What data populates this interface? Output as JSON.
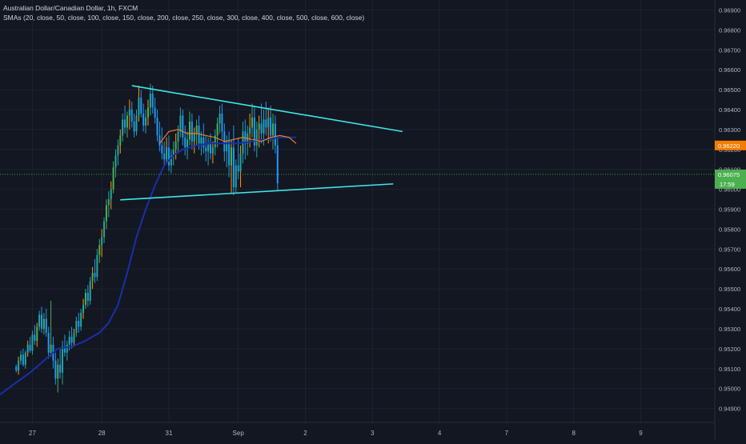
{
  "header": {
    "title": "Australian Dollar/Canadian Dollar, 1h, FXCM",
    "indicator": "SMAs (20, close, 50, close, 100, close, 150, close, 200, close, 250, close, 300, close, 400, close, 500, close, 600, close)"
  },
  "colors": {
    "background": "#131722",
    "grid": "#1e2231",
    "axis_text": "#b2b5be",
    "bull": "#26a69a",
    "bull_alt": "#4caf50",
    "bear": "#2196f3",
    "wick_up": "#ff9800",
    "trendline": "#3ee6e6",
    "sma_fast": "#e8812a",
    "sma_slow": "#1a2fa8",
    "price_orange": "#f57c00",
    "price_green": "#4caf50"
  },
  "chart_data": {
    "type": "candlestick",
    "symbol": "AUDCAD",
    "interval": "1h",
    "y_ticks": [
      0.969,
      0.968,
      0.967,
      0.966,
      0.965,
      0.964,
      0.963,
      0.962,
      0.961,
      0.96,
      0.959,
      0.958,
      0.957,
      0.956,
      0.955,
      0.954,
      0.953,
      0.952,
      0.951,
      0.95,
      0.949
    ],
    "y_tick_labels": [
      "0.96900",
      "0.96800",
      "0.96700",
      "0.96600",
      "0.96500",
      "0.96400",
      "0.96300",
      "0.96200",
      "0.96100",
      "0.96000",
      "0.95900",
      "0.95800",
      "0.95700",
      "0.95600",
      "0.95500",
      "0.95400",
      "0.95300",
      "0.95200",
      "0.95100",
      "0.95000",
      "0.94900"
    ],
    "ylim": [
      0.9483,
      0.9695
    ],
    "x_ticks": [
      "27",
      "28",
      "31",
      "Sep",
      "2",
      "3",
      "4",
      "7",
      "8",
      "9"
    ],
    "x_tick_index": [
      7,
      37,
      66,
      96,
      125,
      154,
      183,
      212,
      241,
      270
    ],
    "x_range": [
      -7,
      302
    ],
    "current_price": {
      "label": "0.96075",
      "value": 0.96075,
      "countdown": "17:59"
    },
    "marked_price": {
      "label": "0.96220",
      "value": 0.9622
    },
    "trendlines": [
      {
        "name": "",
        "from": [
          50,
          0.9652
        ],
        "to": [
          167,
          0.9629
        ]
      },
      {
        "name": "",
        "from": [
          45,
          0.95947
        ],
        "to": [
          163,
          0.96027
        ]
      }
    ],
    "sma_fast": [
      [
        62,
        0.9623
      ],
      [
        66,
        0.9629
      ],
      [
        70,
        0.963
      ],
      [
        74,
        0.9628
      ],
      [
        78,
        0.9628
      ],
      [
        82,
        0.9627
      ],
      [
        86,
        0.9626
      ],
      [
        90,
        0.9624
      ],
      [
        94,
        0.9625
      ],
      [
        98,
        0.9626
      ],
      [
        102,
        0.9625
      ],
      [
        106,
        0.9624
      ],
      [
        110,
        0.9626
      ],
      [
        114,
        0.9627
      ],
      [
        118,
        0.9626
      ],
      [
        121,
        0.9623
      ]
    ],
    "sma_slow": [
      [
        -7,
        0.9497
      ],
      [
        0,
        0.9503
      ],
      [
        6,
        0.9508
      ],
      [
        12,
        0.9514
      ],
      [
        18,
        0.952
      ],
      [
        24,
        0.9521
      ],
      [
        30,
        0.9524
      ],
      [
        36,
        0.9528
      ],
      [
        40,
        0.9533
      ],
      [
        44,
        0.9542
      ],
      [
        48,
        0.9558
      ],
      [
        52,
        0.9576
      ],
      [
        56,
        0.959
      ],
      [
        60,
        0.9602
      ],
      [
        64,
        0.9612
      ],
      [
        68,
        0.9617
      ],
      [
        72,
        0.962
      ],
      [
        78,
        0.9622
      ],
      [
        84,
        0.9623
      ],
      [
        90,
        0.9623
      ],
      [
        96,
        0.9623
      ],
      [
        102,
        0.9624
      ],
      [
        108,
        0.9625
      ],
      [
        114,
        0.9626
      ],
      [
        121,
        0.9626
      ]
    ],
    "candles": [
      [
        0.9511,
        0.9512,
        0.9508,
        0.9509
      ],
      [
        0.9509,
        0.9516,
        0.9507,
        0.9514
      ],
      [
        0.9514,
        0.9519,
        0.9512,
        0.9517
      ],
      [
        0.9517,
        0.952,
        0.9511,
        0.9512
      ],
      [
        0.9512,
        0.9519,
        0.951,
        0.9518
      ],
      [
        0.9518,
        0.9524,
        0.9516,
        0.9522
      ],
      [
        0.9522,
        0.9526,
        0.9518,
        0.9519
      ],
      [
        0.9519,
        0.9529,
        0.9517,
        0.9527
      ],
      [
        0.9527,
        0.9532,
        0.9522,
        0.9524
      ],
      [
        0.9524,
        0.9533,
        0.9521,
        0.9531
      ],
      [
        0.9531,
        0.9539,
        0.9529,
        0.9537
      ],
      [
        0.9537,
        0.9541,
        0.9528,
        0.953
      ],
      [
        0.953,
        0.9538,
        0.9527,
        0.9535
      ],
      [
        0.9535,
        0.954,
        0.9526,
        0.9528
      ],
      [
        0.9528,
        0.9531,
        0.9515,
        0.9518
      ],
      [
        0.9518,
        0.9544,
        0.9516,
        0.9522
      ],
      [
        0.9522,
        0.9526,
        0.951,
        0.9514
      ],
      [
        0.9514,
        0.9518,
        0.9502,
        0.9505
      ],
      [
        0.9505,
        0.9515,
        0.9498,
        0.9512
      ],
      [
        0.9512,
        0.952,
        0.9505,
        0.9508
      ],
      [
        0.9508,
        0.9524,
        0.9502,
        0.9521
      ],
      [
        0.9521,
        0.9527,
        0.9516,
        0.9518
      ],
      [
        0.9518,
        0.9524,
        0.9514,
        0.9522
      ],
      [
        0.9522,
        0.9529,
        0.9519,
        0.9526
      ],
      [
        0.9526,
        0.9531,
        0.952,
        0.9523
      ],
      [
        0.9523,
        0.953,
        0.9521,
        0.9528
      ],
      [
        0.9528,
        0.9536,
        0.9526,
        0.9534
      ],
      [
        0.9534,
        0.9538,
        0.9528,
        0.9531
      ],
      [
        0.9531,
        0.954,
        0.9529,
        0.9538
      ],
      [
        0.9538,
        0.9545,
        0.9535,
        0.9542
      ],
      [
        0.9542,
        0.955,
        0.954,
        0.9548
      ],
      [
        0.9548,
        0.9552,
        0.9541,
        0.9544
      ],
      [
        0.9544,
        0.9556,
        0.9542,
        0.9554
      ],
      [
        0.9554,
        0.9561,
        0.955,
        0.9558
      ],
      [
        0.9558,
        0.9565,
        0.9553,
        0.9556
      ],
      [
        0.9556,
        0.957,
        0.9554,
        0.9567
      ],
      [
        0.9567,
        0.9575,
        0.9563,
        0.9572
      ],
      [
        0.9572,
        0.958,
        0.9566,
        0.9576
      ],
      [
        0.9576,
        0.9586,
        0.9573,
        0.9584
      ],
      [
        0.9584,
        0.9595,
        0.958,
        0.9592
      ],
      [
        0.9592,
        0.9599,
        0.9586,
        0.9595
      ],
      [
        0.9595,
        0.9604,
        0.959,
        0.96
      ],
      [
        0.96,
        0.9614,
        0.9598,
        0.9611
      ],
      [
        0.9611,
        0.962,
        0.9606,
        0.9617
      ],
      [
        0.9617,
        0.9625,
        0.9612,
        0.9622
      ],
      [
        0.9622,
        0.963,
        0.9618,
        0.9627
      ],
      [
        0.9627,
        0.9638,
        0.9624,
        0.9635
      ],
      [
        0.9635,
        0.9642,
        0.9628,
        0.9631
      ],
      [
        0.9631,
        0.9639,
        0.9626,
        0.9637
      ],
      [
        0.9637,
        0.9645,
        0.963,
        0.964
      ],
      [
        0.964,
        0.9644,
        0.9631,
        0.9634
      ],
      [
        0.9634,
        0.9638,
        0.9626,
        0.9629
      ],
      [
        0.9629,
        0.964,
        0.9627,
        0.9637
      ],
      [
        0.9637,
        0.9652,
        0.9634,
        0.9646
      ],
      [
        0.9646,
        0.965,
        0.9636,
        0.9638
      ],
      [
        0.9638,
        0.9643,
        0.9629,
        0.9632
      ],
      [
        0.9632,
        0.964,
        0.9628,
        0.9636
      ],
      [
        0.9636,
        0.9645,
        0.9632,
        0.9641
      ],
      [
        0.9641,
        0.9653,
        0.9637,
        0.9648
      ],
      [
        0.9648,
        0.9652,
        0.9638,
        0.9641
      ],
      [
        0.9641,
        0.9646,
        0.9633,
        0.9636
      ],
      [
        0.9636,
        0.964,
        0.9624,
        0.9627
      ],
      [
        0.9627,
        0.9634,
        0.9619,
        0.9622
      ],
      [
        0.9622,
        0.9631,
        0.9615,
        0.9618
      ],
      [
        0.9618,
        0.9624,
        0.9612,
        0.9615
      ],
      [
        0.9615,
        0.9626,
        0.9613,
        0.9621
      ],
      [
        0.9621,
        0.9627,
        0.9609,
        0.9612
      ],
      [
        0.9612,
        0.962,
        0.9608,
        0.9617
      ],
      [
        0.9617,
        0.9624,
        0.9612,
        0.962
      ],
      [
        0.962,
        0.9628,
        0.9615,
        0.9624
      ],
      [
        0.9624,
        0.9632,
        0.9618,
        0.9629
      ],
      [
        0.9629,
        0.9641,
        0.9626,
        0.9637
      ],
      [
        0.9637,
        0.964,
        0.9622,
        0.9626
      ],
      [
        0.9626,
        0.9632,
        0.9617,
        0.9621
      ],
      [
        0.9621,
        0.9629,
        0.9615,
        0.9625
      ],
      [
        0.9625,
        0.9639,
        0.9622,
        0.9634
      ],
      [
        0.9634,
        0.9638,
        0.962,
        0.9624
      ],
      [
        0.9624,
        0.9631,
        0.9618,
        0.9628
      ],
      [
        0.9628,
        0.9635,
        0.9622,
        0.9632
      ],
      [
        0.9632,
        0.9637,
        0.962,
        0.9623
      ],
      [
        0.9623,
        0.9629,
        0.9617,
        0.9626
      ],
      [
        0.9626,
        0.9633,
        0.9618,
        0.9621
      ],
      [
        0.9621,
        0.9627,
        0.9614,
        0.9619
      ],
      [
        0.9619,
        0.9626,
        0.9612,
        0.9623
      ],
      [
        0.9623,
        0.9628,
        0.9615,
        0.9618
      ],
      [
        0.9618,
        0.9624,
        0.9613,
        0.9621
      ],
      [
        0.9621,
        0.963,
        0.9617,
        0.9627
      ],
      [
        0.9627,
        0.9636,
        0.9621,
        0.9633
      ],
      [
        0.9633,
        0.9642,
        0.9628,
        0.9638
      ],
      [
        0.9638,
        0.9643,
        0.9625,
        0.9629
      ],
      [
        0.9629,
        0.9633,
        0.9614,
        0.9619
      ],
      [
        0.9619,
        0.9627,
        0.9611,
        0.9624
      ],
      [
        0.9624,
        0.9629,
        0.9606,
        0.9612
      ],
      [
        0.9612,
        0.9625,
        0.9598,
        0.9621
      ],
      [
        0.9621,
        0.9632,
        0.9597,
        0.9601
      ],
      [
        0.9601,
        0.9615,
        0.9598,
        0.9612
      ],
      [
        0.9612,
        0.9626,
        0.9605,
        0.9609
      ],
      [
        0.9609,
        0.9622,
        0.9601,
        0.9618
      ],
      [
        0.9618,
        0.9634,
        0.9613,
        0.9629
      ],
      [
        0.9629,
        0.9635,
        0.9615,
        0.9623
      ],
      [
        0.9623,
        0.9632,
        0.9617,
        0.9628
      ],
      [
        0.9628,
        0.9638,
        0.9621,
        0.9631
      ],
      [
        0.9631,
        0.9643,
        0.9626,
        0.9636
      ],
      [
        0.9636,
        0.9642,
        0.9619,
        0.9622
      ],
      [
        0.9622,
        0.9634,
        0.9616,
        0.963
      ],
      [
        0.963,
        0.9637,
        0.9621,
        0.9633
      ],
      [
        0.9633,
        0.9643,
        0.9623,
        0.9628
      ],
      [
        0.9628,
        0.964,
        0.9622,
        0.9635
      ],
      [
        0.9635,
        0.9644,
        0.9627,
        0.9631
      ],
      [
        0.9631,
        0.9641,
        0.9623,
        0.9636
      ],
      [
        0.9636,
        0.9642,
        0.9624,
        0.9627
      ],
      [
        0.9627,
        0.9638,
        0.962,
        0.9633
      ],
      [
        0.9633,
        0.9637,
        0.9618,
        0.9622
      ],
      [
        0.9622,
        0.9626,
        0.9599,
        0.9603
      ]
    ]
  }
}
